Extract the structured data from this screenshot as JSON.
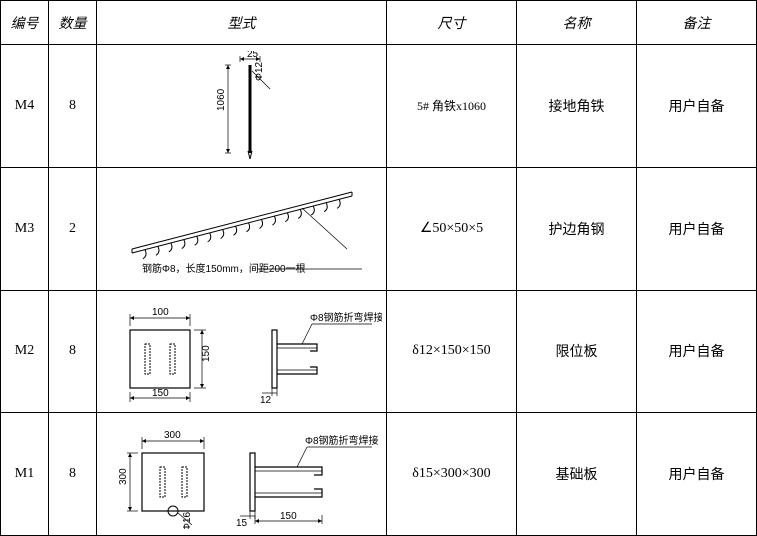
{
  "headers": {
    "id": "编号",
    "qty": "数量",
    "type": "型式",
    "size": "尺寸",
    "name": "名称",
    "note": "备注"
  },
  "rows": [
    {
      "id": "M4",
      "qty": "8",
      "size": "5# 角铁x1060",
      "name": "接地角铁",
      "note": "用户自备",
      "diagram": {
        "type": "rod",
        "dims": {
          "top": "25",
          "left": "1060",
          "diameter": "Φ12"
        },
        "color": "#000000",
        "stroke_width": 1
      }
    },
    {
      "id": "M3",
      "qty": "2",
      "size": "∠50×50×5",
      "name": "护边角钢",
      "note": "用户自备",
      "diagram": {
        "type": "angle-bar-hooks",
        "caption": "钢筋Φ8，长度150mm，间距200一根",
        "color": "#000000",
        "stroke_width": 1
      }
    },
    {
      "id": "M2",
      "qty": "8",
      "size": "δ12×150×150",
      "name": "限位板",
      "note": "用户自备",
      "diagram": {
        "type": "plate-bracket",
        "dims": {
          "top": "100",
          "right": "150",
          "bottom": "150",
          "thick": "12",
          "bracket_label": "Φ8钢筋折弯焊接"
        },
        "color": "#000000",
        "stroke_width": 1
      }
    },
    {
      "id": "M1",
      "qty": "8",
      "size": "δ15×300×300",
      "name": "基础板",
      "note": "用户自备",
      "diagram": {
        "type": "plate-bracket-2",
        "dims": {
          "top": "300",
          "left": "300",
          "thick": "15",
          "bracket_w": "150",
          "bracket_label": "Φ8钢筋折弯焊接",
          "diameter": "Φ16"
        },
        "color": "#000000",
        "stroke_width": 1
      }
    }
  ],
  "style": {
    "border_color": "#000000",
    "bg": "#ffffff",
    "font_main": "SimSun",
    "fontsize_header": 14,
    "fontsize_cell": 14,
    "fontsize_dim": 10,
    "header_italic": true
  }
}
